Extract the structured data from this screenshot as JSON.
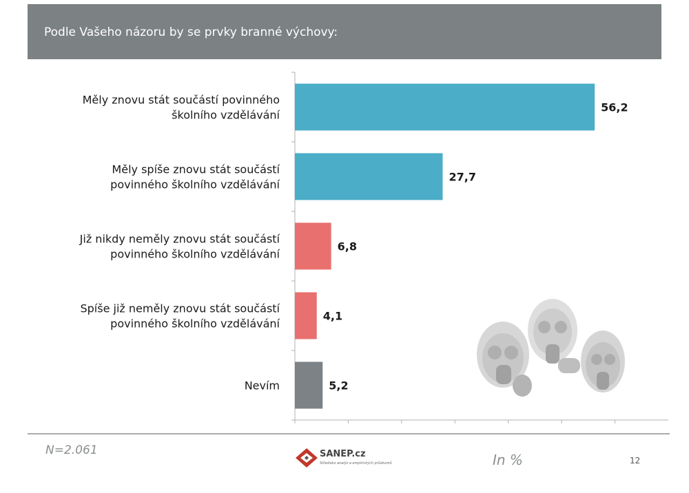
{
  "header": {
    "title": "Podle Vašeho názoru by se prvky branné výchovy:"
  },
  "chart_data": {
    "type": "bar",
    "orientation": "horizontal",
    "categories": [
      [
        "Měly znovu stát součástí povinného",
        "školního vzdělávání"
      ],
      [
        "Měly spíše znovu stát součástí",
        "povinného školního vzdělávání"
      ],
      [
        "Již nikdy neměly znovu stát součástí",
        "povinného školního vzdělávání"
      ],
      [
        "Spíše již neměly znovu stát součástí",
        "povinného školního vzdělávání"
      ],
      [
        "Nevím"
      ]
    ],
    "values": [
      56.2,
      27.7,
      6.8,
      4.1,
      5.2
    ],
    "value_labels": [
      "56,2",
      "27,7",
      "6,8",
      "4,1",
      "5,2"
    ],
    "bar_colors": [
      "#4badc7",
      "#4badc7",
      "#e8716f",
      "#e8716f",
      "#7c8286"
    ],
    "xlim": [
      0,
      70
    ],
    "x_ticks": [
      0,
      10,
      20,
      30,
      40,
      50,
      60
    ],
    "grid": false,
    "legend": "none"
  },
  "footer": {
    "sample_size": "N=2.061",
    "unit": "In %",
    "page_number": "12",
    "logo_text": "SANEP.cz",
    "logo_tagline": "Středisko analýz a empirických průzkumů"
  },
  "decoration": {
    "icon": "gas-mask-people-icon"
  }
}
